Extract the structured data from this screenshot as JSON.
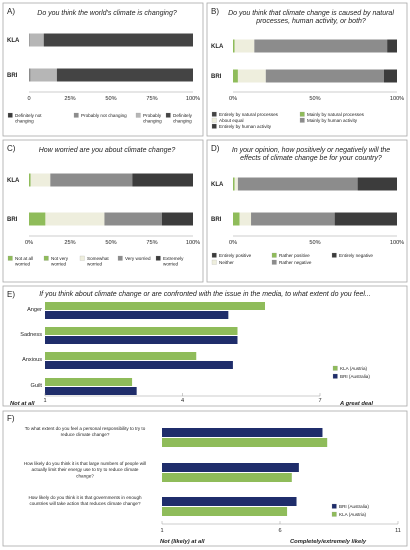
{
  "colors": {
    "def_not": "#3c3c3c",
    "prob_not": "#8c8c8c",
    "prob_ch": "#b6b6b6",
    "def_ch": "#444444",
    "nat": "#444444",
    "mainly_nat": "#8fbc5a",
    "equal": "#eeeedd",
    "mainly_hum": "#8c8c8c",
    "hum": "#3c3c3c",
    "w_not": "#8fbc5a",
    "w_notvery": "#8fbc5a",
    "w_some": "#eeeedd",
    "w_very": "#8c8c8c",
    "w_ext": "#3c3c3c",
    "e_pos": "#3c3c3c",
    "r_pos": "#8fbc5a",
    "neither": "#eeeedd",
    "r_neg": "#8c8c8c",
    "e_neg": "#3c3c3c",
    "kla": "#8fbc5a",
    "bri": "#1f2d6b"
  },
  "chart_data": [
    {
      "id": "A",
      "letter": "A)",
      "type": "bar",
      "stacked": true,
      "orientation": "horizontal",
      "title": "Do you think the world's climate is changing?",
      "categories": [
        "KLA",
        "BRI"
      ],
      "xlim": [
        0,
        100
      ],
      "ticks": [
        "0",
        "25%",
        "50%",
        "75%",
        "100%"
      ],
      "series": [
        {
          "name": "Definitely not changing",
          "color": "def_not",
          "values": [
            0,
            0
          ]
        },
        {
          "name": "Probably not changing",
          "color": "prob_not",
          "values": [
            0.5,
            1
          ]
        },
        {
          "name": "Probably changing",
          "color": "prob_ch",
          "values": [
            8.5,
            16
          ]
        },
        {
          "name": "Definitely changing",
          "color": "def_ch",
          "values": [
            91,
            83
          ]
        }
      ]
    },
    {
      "id": "B",
      "letter": "B)",
      "type": "bar",
      "stacked": true,
      "orientation": "horizontal",
      "title": "Do you think that climate change is caused by natural processes, human activity, or both?",
      "categories": [
        "KLA",
        "BRI"
      ],
      "xlim": [
        0,
        100
      ],
      "ticks": [
        "0%",
        "50%",
        "100%"
      ],
      "series": [
        {
          "name": "Entirely by natural processes",
          "color": "nat",
          "values": [
            0,
            0
          ]
        },
        {
          "name": "Mainly by natural processes",
          "color": "mainly_nat",
          "values": [
            1,
            3
          ]
        },
        {
          "name": "About equal",
          "color": "equal",
          "values": [
            12,
            17
          ]
        },
        {
          "name": "Mainly by human activity",
          "color": "mainly_hum",
          "values": [
            81,
            72
          ]
        },
        {
          "name": "Entirely by human activity",
          "color": "hum",
          "values": [
            6,
            8
          ]
        }
      ]
    },
    {
      "id": "C",
      "letter": "C)",
      "type": "bar",
      "stacked": true,
      "orientation": "horizontal",
      "title": "How worried are you about climate change?",
      "categories": [
        "KLA",
        "BRI"
      ],
      "xlim": [
        0,
        100
      ],
      "ticks": [
        "0%",
        "25%",
        "50%",
        "75%",
        "100%"
      ],
      "series": [
        {
          "name": "Not at all worried",
          "color": "w_not",
          "values": [
            0,
            0
          ]
        },
        {
          "name": "Not very worried",
          "color": "w_notvery",
          "values": [
            1,
            10
          ]
        },
        {
          "name": "Somewhat worried",
          "color": "w_some",
          "values": [
            12,
            36
          ]
        },
        {
          "name": "Very worried",
          "color": "w_very",
          "values": [
            50,
            35
          ]
        },
        {
          "name": "Extremely worried",
          "color": "w_ext",
          "values": [
            37,
            19
          ]
        }
      ]
    },
    {
      "id": "D",
      "letter": "D)",
      "type": "bar",
      "stacked": true,
      "orientation": "horizontal",
      "title": "In your opinion, how positively or negatively will the effects of climate change be for your country?",
      "categories": [
        "KLA",
        "BRI"
      ],
      "xlim": [
        0,
        100
      ],
      "ticks": [
        "0%",
        "50%",
        "100%"
      ],
      "series": [
        {
          "name": "Entirely positive",
          "color": "e_pos",
          "values": [
            0,
            0
          ]
        },
        {
          "name": "Rather positive",
          "color": "r_pos",
          "values": [
            1,
            4
          ]
        },
        {
          "name": "Neither",
          "color": "neither",
          "values": [
            2,
            7
          ]
        },
        {
          "name": "Rather negative",
          "color": "r_neg",
          "values": [
            73,
            51
          ]
        },
        {
          "name": "Entirely negative",
          "color": "e_neg",
          "values": [
            24,
            38
          ]
        }
      ]
    },
    {
      "id": "E",
      "letter": "E)",
      "type": "bar",
      "orientation": "horizontal",
      "title": "If you think about climate change or are confronted with the issue in the media, to what extent do you feel...",
      "categories": [
        "Anger",
        "Sadness",
        "Anxious",
        "Guilt"
      ],
      "xlim": [
        1,
        7
      ],
      "ticks": [
        "1",
        "4",
        "7"
      ],
      "axis_left": "Not at all",
      "axis_right": "A great deal",
      "series": [
        {
          "name": "KLA (Austria)",
          "color": "kla",
          "values": [
            5.8,
            5.2,
            4.3,
            2.9
          ]
        },
        {
          "name": "BRI (Australia)",
          "color": "bri",
          "values": [
            5.0,
            5.2,
            5.1,
            3.0
          ]
        }
      ]
    },
    {
      "id": "F",
      "letter": "F)",
      "type": "bar",
      "orientation": "horizontal",
      "categories": [
        "To what extent do you feel a personal responsibility to try to reduce climate change?",
        "How likely do you think it is that large numbers of people will actually limit their energy use to try to reduce climate change?",
        "How likely do you think it is that governments in enough countries will take action that reduces climate change?"
      ],
      "xlim": [
        1,
        11
      ],
      "ticks": [
        "1",
        "6",
        "11"
      ],
      "axis_left": "Not (likely) at all",
      "axis_right": "Completely/extremely likely",
      "series": [
        {
          "name": "BRI (Australia)",
          "color": "bri",
          "values": [
            7.8,
            6.8,
            6.7
          ]
        },
        {
          "name": "KLA (Austria)",
          "color": "kla",
          "values": [
            8.0,
            6.5,
            6.3
          ]
        }
      ]
    }
  ]
}
